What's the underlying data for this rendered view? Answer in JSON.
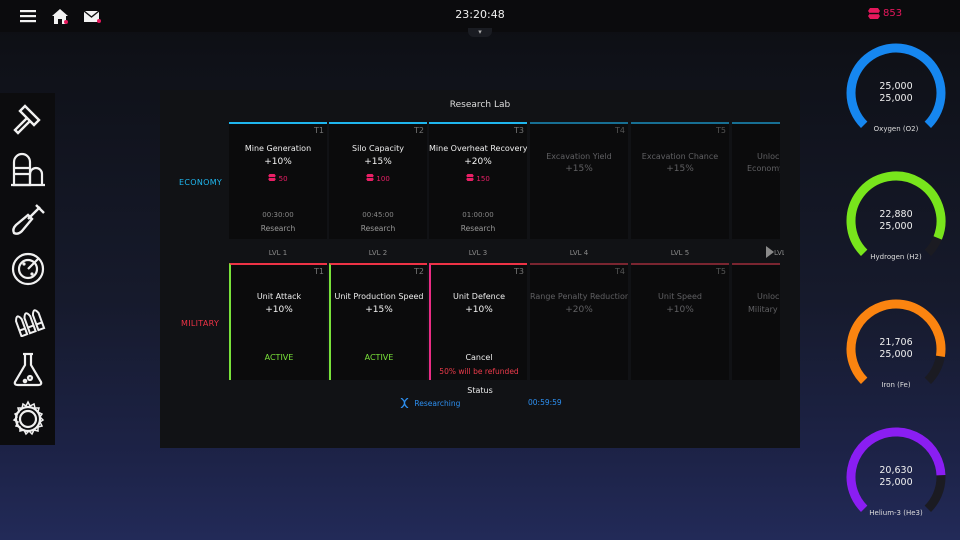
{
  "topbar": {
    "time": "23:20:48",
    "resource_count": "853",
    "notch": "▾"
  },
  "sidebar": {
    "items": [
      {
        "name": "build-hammer",
        "icon": "hammer-icon"
      },
      {
        "name": "silo",
        "icon": "silo-icon"
      },
      {
        "name": "mine-shovel",
        "icon": "shovel-icon"
      },
      {
        "name": "radar",
        "icon": "radar-icon"
      },
      {
        "name": "ammunition",
        "icon": "bullets-icon"
      },
      {
        "name": "research-lab",
        "icon": "flask-icon"
      },
      {
        "name": "settings",
        "icon": "gear-icon"
      }
    ]
  },
  "panel": {
    "title": "Research Lab",
    "economy_label": "ECONOMY",
    "military_label": "MILITARY",
    "levels": [
      "LVL 1",
      "LVL 2",
      "LVL 3",
      "LVL 4",
      "LVL 5",
      "LVL"
    ],
    "economy": [
      {
        "tier": "T1",
        "name": "Mine Generation",
        "bonus": "+10%",
        "cost": "50",
        "time": "00:30:00",
        "action": "Research"
      },
      {
        "tier": "T2",
        "name": "Silo Capacity",
        "bonus": "+15%",
        "cost": "100",
        "time": "00:45:00",
        "action": "Research"
      },
      {
        "tier": "T3",
        "name": "Mine Overheat Recovery",
        "bonus": "+20%",
        "cost": "150",
        "time": "01:00:00",
        "action": "Research"
      },
      {
        "tier": "T4",
        "name": "Excavation Yield",
        "bonus": "+15%"
      },
      {
        "tier": "T5",
        "name": "Excavation Chance",
        "bonus": "+15%"
      },
      {
        "tier": "",
        "name": "Unlock",
        "bonus": "Economy"
      }
    ],
    "military": [
      {
        "tier": "T1",
        "name": "Unit Attack",
        "bonus": "+10%",
        "status": "ACTIVE"
      },
      {
        "tier": "T2",
        "name": "Unit Production Speed",
        "bonus": "+15%",
        "status": "ACTIVE"
      },
      {
        "tier": "T3",
        "name": "Unit Defence",
        "bonus": "+10%",
        "action": "Cancel",
        "note": "50% will be refunded"
      },
      {
        "tier": "T4",
        "name": "Range Penalty Reduction",
        "bonus": "+20%"
      },
      {
        "tier": "T5",
        "name": "Unit Speed",
        "bonus": "+10%"
      },
      {
        "tier": "",
        "name": "Unlock",
        "bonus": "Military"
      }
    ],
    "status": {
      "title": "Status",
      "state": "Researching",
      "timer": "00:59:59"
    }
  },
  "gauges": [
    {
      "name": "oxygen",
      "current": "25,000",
      "max": "25,000",
      "label": "Oxygen (O2)",
      "color": "#1687f0",
      "fraction": 1.0
    },
    {
      "name": "hydrogen",
      "current": "22,880",
      "max": "25,000",
      "label": "Hydrogen (H2)",
      "color": "#78e51c",
      "fraction": 0.915
    },
    {
      "name": "iron",
      "current": "21,706",
      "max": "25,000",
      "label": "Iron (Fe)",
      "color": "#fb8410",
      "fraction": 0.868
    },
    {
      "name": "helium",
      "current": "20,630",
      "max": "25,000",
      "label": "Helium-3 (He3)",
      "color": "#8a1ef2",
      "fraction": 0.825
    }
  ],
  "colors": {
    "economy_accent": "#1fb6ee",
    "military_accent": "#ee3346",
    "active": "#79e23a",
    "researching": "#ea2c84",
    "cost": "#ea1f66"
  }
}
